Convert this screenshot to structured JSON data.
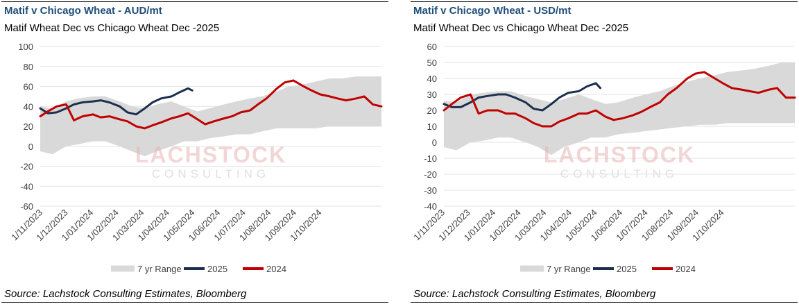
{
  "charts": [
    {
      "title": "Matif v Chicago Wheat - AUD/mt",
      "subtitle": "Matif Wheat Dec vs Chicago Wheat Dec -2025",
      "source": "Source: Lachstock Consulting Estimates, Bloomberg",
      "watermark_top": "LACHSTOCK",
      "watermark_bottom": "CONSULTING",
      "y_ticks": [
        "100",
        "80",
        "60",
        "40",
        "20",
        "0",
        "-20",
        "-40",
        "-60"
      ],
      "x_ticks": [
        "1/11/2023",
        "1/12/2023",
        "1/01/2024",
        "1/02/2024",
        "1/03/2024",
        "1/04/2024",
        "1/05/2024",
        "1/06/2024",
        "1/07/2024",
        "1/08/2024",
        "1/09/2024",
        "1/10/2024"
      ],
      "legend": [
        "7 yr Range",
        "2025",
        "2024"
      ]
    },
    {
      "title": "Matif v Chicago Wheat - USD/mt",
      "subtitle": "Matif Wheat Dec vs Chicago Wheat Dec -2025",
      "source": "Source: Lachstock Consulting Estimates, Bloomberg",
      "watermark_top": "LACHSTOCK",
      "watermark_bottom": "CONSULTING",
      "y_ticks": [
        "60",
        "50",
        "40",
        "30",
        "20",
        "10",
        "0",
        "-10",
        "-20",
        "-30",
        "-40"
      ],
      "x_ticks": [
        "1/11/2023",
        "1/12/2023",
        "1/01/2024",
        "1/02/2024",
        "1/03/2024",
        "1/04/2024",
        "1/05/2024",
        "1/06/2024",
        "1/07/2024",
        "1/08/2024",
        "1/09/2024",
        "1/10/2024"
      ],
      "legend": [
        "7 yr Range",
        "2025",
        "2024"
      ]
    }
  ],
  "chart_data": [
    {
      "type": "line",
      "title": "Matif v Chicago Wheat - AUD/mt",
      "subtitle": "Matif Wheat Dec vs Chicago Wheat Dec -2025",
      "ylim": [
        -60,
        100
      ],
      "y_ticks": [
        100,
        80,
        60,
        40,
        20,
        0,
        -20,
        -40,
        -60
      ],
      "x_range": [
        "2023-11-01",
        "2024-11-30"
      ],
      "grid": "horizontal",
      "legend_position": "bottom",
      "colors": {
        "range": "#d9d9d9",
        "2025": "#1b2f4e",
        "2024": "#c00000"
      },
      "series": [
        {
          "name": "7 yr Range",
          "type": "band",
          "x": [
            "2023-11-01",
            "2023-11-15",
            "2023-12-01",
            "2023-12-15",
            "2024-01-01",
            "2024-01-15",
            "2024-02-01",
            "2024-02-15",
            "2024-03-01",
            "2024-03-15",
            "2024-04-01",
            "2024-04-15",
            "2024-05-01",
            "2024-05-15",
            "2024-06-01",
            "2024-06-15",
            "2024-07-01",
            "2024-07-15",
            "2024-08-01",
            "2024-08-15",
            "2024-09-01",
            "2024-09-15",
            "2024-10-01",
            "2024-10-15",
            "2024-11-01",
            "2024-11-15",
            "2024-11-30"
          ],
          "low": [
            -5,
            -8,
            0,
            2,
            5,
            5,
            0,
            -5,
            -10,
            -5,
            0,
            5,
            5,
            8,
            10,
            12,
            12,
            15,
            18,
            18,
            18,
            18,
            20,
            20,
            20,
            20,
            20
          ],
          "high": [
            40,
            38,
            45,
            48,
            50,
            50,
            45,
            40,
            38,
            42,
            45,
            40,
            35,
            38,
            42,
            45,
            48,
            50,
            55,
            60,
            62,
            65,
            68,
            68,
            70,
            70,
            70
          ]
        },
        {
          "name": "2025",
          "x": [
            "2023-11-01",
            "2023-11-10",
            "2023-11-20",
            "2023-12-01",
            "2023-12-10",
            "2023-12-20",
            "2024-01-01",
            "2024-01-10",
            "2024-01-20",
            "2024-02-01",
            "2024-02-10",
            "2024-02-20",
            "2024-03-01",
            "2024-03-10",
            "2024-03-20",
            "2024-04-01",
            "2024-04-10",
            "2024-04-20",
            "2024-04-25"
          ],
          "values": [
            38,
            33,
            34,
            38,
            42,
            44,
            45,
            46,
            44,
            40,
            34,
            32,
            38,
            44,
            48,
            50,
            54,
            58,
            56
          ]
        },
        {
          "name": "2024",
          "x": [
            "2023-11-01",
            "2023-11-10",
            "2023-11-20",
            "2023-12-01",
            "2023-12-10",
            "2023-12-20",
            "2024-01-01",
            "2024-01-10",
            "2024-01-20",
            "2024-02-01",
            "2024-02-10",
            "2024-02-20",
            "2024-03-01",
            "2024-03-10",
            "2024-03-20",
            "2024-04-01",
            "2024-04-10",
            "2024-04-20",
            "2024-05-01",
            "2024-05-10",
            "2024-05-20",
            "2024-06-01",
            "2024-06-10",
            "2024-06-20",
            "2024-07-01",
            "2024-07-10",
            "2024-07-20",
            "2024-08-01",
            "2024-08-10",
            "2024-08-20",
            "2024-09-01",
            "2024-09-10",
            "2024-09-20",
            "2024-10-01",
            "2024-10-10",
            "2024-10-20",
            "2024-11-01",
            "2024-11-10",
            "2024-11-20",
            "2024-11-30"
          ],
          "values": [
            30,
            35,
            40,
            42,
            26,
            30,
            32,
            29,
            30,
            27,
            25,
            20,
            18,
            21,
            24,
            28,
            30,
            33,
            27,
            22,
            25,
            28,
            30,
            34,
            36,
            42,
            48,
            58,
            64,
            66,
            60,
            56,
            52,
            50,
            48,
            46,
            48,
            50,
            42,
            40
          ]
        }
      ]
    },
    {
      "type": "line",
      "title": "Matif v Chicago Wheat - USD/mt",
      "subtitle": "Matif Wheat Dec vs Chicago Wheat Dec -2025",
      "ylim": [
        -40,
        60
      ],
      "y_ticks": [
        60,
        50,
        40,
        30,
        20,
        10,
        0,
        -10,
        -20,
        -30,
        -40
      ],
      "x_range": [
        "2023-11-01",
        "2024-11-30"
      ],
      "grid": "horizontal",
      "legend_position": "bottom",
      "colors": {
        "range": "#d9d9d9",
        "2025": "#1b2f4e",
        "2024": "#c00000"
      },
      "series": [
        {
          "name": "7 yr Range",
          "type": "band",
          "x": [
            "2023-11-01",
            "2023-11-15",
            "2023-12-01",
            "2023-12-15",
            "2024-01-01",
            "2024-01-15",
            "2024-02-01",
            "2024-02-15",
            "2024-03-01",
            "2024-03-15",
            "2024-04-01",
            "2024-04-15",
            "2024-05-01",
            "2024-05-15",
            "2024-06-01",
            "2024-06-15",
            "2024-07-01",
            "2024-07-15",
            "2024-08-01",
            "2024-08-15",
            "2024-09-01",
            "2024-09-15",
            "2024-10-01",
            "2024-10-15",
            "2024-11-01",
            "2024-11-15",
            "2024-11-30"
          ],
          "low": [
            -3,
            -5,
            0,
            1,
            3,
            3,
            0,
            -3,
            -8,
            -3,
            0,
            3,
            3,
            5,
            6,
            7,
            8,
            9,
            10,
            11,
            11,
            12,
            12,
            12,
            12,
            12,
            12
          ],
          "high": [
            26,
            25,
            30,
            31,
            32,
            32,
            29,
            27,
            25,
            27,
            30,
            27,
            24,
            25,
            28,
            30,
            32,
            35,
            38,
            40,
            42,
            44,
            45,
            46,
            48,
            50,
            50
          ]
        },
        {
          "name": "2025",
          "x": [
            "2023-11-01",
            "2023-11-10",
            "2023-11-20",
            "2023-12-01",
            "2023-12-10",
            "2023-12-20",
            "2024-01-01",
            "2024-01-10",
            "2024-01-20",
            "2024-02-01",
            "2024-02-10",
            "2024-02-20",
            "2024-03-01",
            "2024-03-10",
            "2024-03-20",
            "2024-04-01",
            "2024-04-10",
            "2024-04-20",
            "2024-04-25"
          ],
          "values": [
            24,
            22,
            22,
            25,
            28,
            29,
            30,
            30,
            28,
            25,
            21,
            20,
            24,
            28,
            31,
            32,
            35,
            37,
            34
          ]
        },
        {
          "name": "2024",
          "x": [
            "2023-11-01",
            "2023-11-10",
            "2023-11-20",
            "2023-12-01",
            "2023-12-10",
            "2023-12-20",
            "2024-01-01",
            "2024-01-10",
            "2024-01-20",
            "2024-02-01",
            "2024-02-10",
            "2024-02-20",
            "2024-03-01",
            "2024-03-10",
            "2024-03-20",
            "2024-04-01",
            "2024-04-10",
            "2024-04-20",
            "2024-05-01",
            "2024-05-10",
            "2024-05-20",
            "2024-06-01",
            "2024-06-10",
            "2024-06-20",
            "2024-07-01",
            "2024-07-10",
            "2024-07-20",
            "2024-08-01",
            "2024-08-10",
            "2024-08-20",
            "2024-09-01",
            "2024-09-10",
            "2024-09-20",
            "2024-10-01",
            "2024-10-10",
            "2024-10-20",
            "2024-11-01",
            "2024-11-10",
            "2024-11-20",
            "2024-11-30"
          ],
          "values": [
            20,
            24,
            28,
            30,
            18,
            20,
            20,
            18,
            18,
            15,
            12,
            10,
            10,
            13,
            15,
            18,
            18,
            20,
            16,
            14,
            15,
            17,
            19,
            22,
            25,
            30,
            34,
            40,
            43,
            44,
            40,
            37,
            34,
            33,
            32,
            31,
            33,
            34,
            28,
            28
          ]
        }
      ]
    }
  ]
}
